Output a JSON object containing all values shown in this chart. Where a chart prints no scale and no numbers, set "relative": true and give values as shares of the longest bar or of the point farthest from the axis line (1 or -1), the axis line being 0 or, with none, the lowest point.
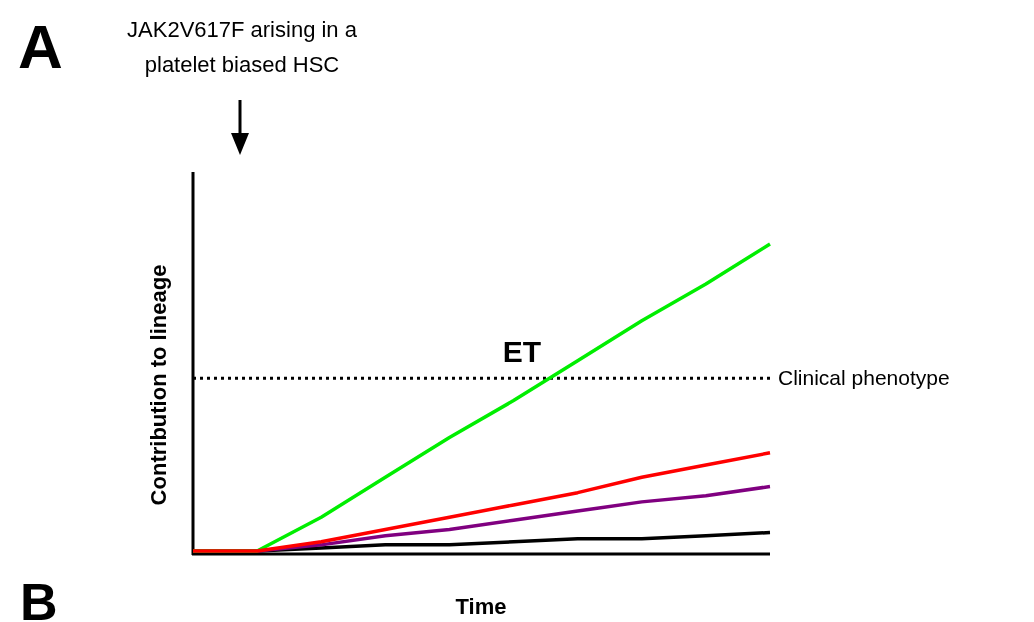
{
  "chart_data": {
    "type": "line",
    "relative": true,
    "xlabel": "Time",
    "ylabel": "Contribution to lineage",
    "categories": [
      null,
      null,
      null,
      null,
      null,
      null,
      null,
      null,
      null,
      null
    ],
    "series": [
      {
        "color": "#000000",
        "values": [
          0,
          0,
          0.01,
          0.02,
          0.02,
          0.03,
          0.04,
          0.04,
          0.05,
          0.06
        ]
      },
      {
        "color": "#800080",
        "values": [
          0,
          0,
          0.02,
          0.05,
          0.07,
          0.1,
          0.13,
          0.16,
          0.18,
          0.21
        ]
      },
      {
        "color": "#00ee00",
        "values": [
          0,
          0,
          0.11,
          0.24,
          0.37,
          0.49,
          0.62,
          0.75,
          0.87,
          1
        ]
      },
      {
        "color": "#ff0000",
        "values": [
          0,
          0,
          0.03,
          0.07,
          0.11,
          0.15,
          0.19,
          0.24,
          0.28,
          0.32
        ]
      }
    ],
    "ref_lines": [
      {
        "axis": "y",
        "value": 0.563,
        "label": "Clinical phenotype",
        "color": "#000000",
        "line_style": "dotted"
      }
    ],
    "marker": "none",
    "line_style": "solid",
    "grid": false,
    "annotations": [
      "A",
      "JAK2V617F arising in a platelet biased HSC",
      "ET",
      "B"
    ]
  }
}
